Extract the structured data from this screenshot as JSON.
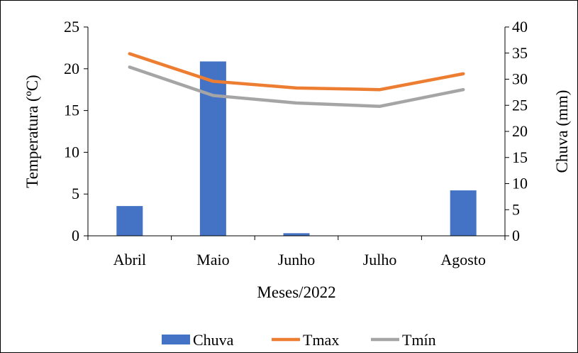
{
  "chart_data": {
    "type": "bar-line-combo",
    "categories": [
      "Abril",
      "Maio",
      "Junho",
      "Julho",
      "Agosto"
    ],
    "xlabel": "Meses/2022",
    "ylabel_left": "Temperatura (ºC)",
    "ylabel_right": "Chuva (mm)",
    "ylim_left": [
      0,
      25
    ],
    "yticks_left": [
      0,
      5,
      10,
      15,
      20,
      25
    ],
    "ylim_right": [
      0,
      40
    ],
    "yticks_right": [
      0,
      5,
      10,
      15,
      20,
      25,
      30,
      35,
      40
    ],
    "grid": false,
    "legend_position": "bottom",
    "series": [
      {
        "name": "Chuva",
        "type": "bar",
        "axis": "right",
        "color": "#4472C4",
        "values": [
          5.7,
          33.4,
          0.5,
          0,
          8.7
        ]
      },
      {
        "name": "Tmax",
        "type": "line",
        "axis": "left",
        "color": "#ED7D31",
        "values": [
          21.8,
          18.5,
          17.7,
          17.5,
          19.4
        ]
      },
      {
        "name": "Tmín",
        "type": "line",
        "axis": "left",
        "color": "#A5A5A5",
        "values": [
          20.2,
          16.8,
          15.9,
          15.5,
          17.5
        ]
      }
    ]
  }
}
